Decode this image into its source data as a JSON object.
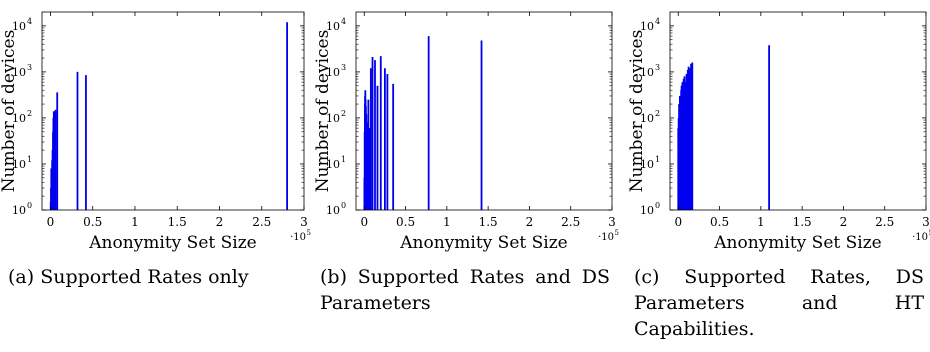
{
  "chart_data": [
    {
      "type": "bar",
      "xlabel": "Anonymity Set Size",
      "ylabel": "Number of devices",
      "x_exponent": "·10",
      "x_exponent_power": "5",
      "xlim": [
        -0.1,
        3.0
      ],
      "xticks": [
        "0",
        "0.5",
        "1",
        "1.5",
        "2",
        "2.5",
        "3"
      ],
      "xtick_values": [
        0,
        0.5,
        1,
        1.5,
        2,
        2.5,
        3
      ],
      "ylim": [
        1,
        20000
      ],
      "ylog": true,
      "yticks": [
        "10",
        "10",
        "10",
        "10",
        "10"
      ],
      "ytick_powers": [
        "0",
        "1",
        "2",
        "3",
        "4"
      ],
      "ytick_values": [
        1,
        10,
        100,
        1000,
        10000
      ],
      "color": "#0000ee",
      "x": [
        0.003,
        0.006,
        0.01,
        0.015,
        0.02,
        0.025,
        0.03,
        0.035,
        0.04,
        0.045,
        0.05,
        0.055,
        0.06,
        0.08,
        0.32,
        0.42,
        2.8
      ],
      "values": [
        1.5,
        3,
        8,
        5,
        12,
        20,
        50,
        100,
        140,
        40,
        130,
        100,
        150,
        360,
        1000,
        850,
        12000
      ],
      "caption": "(a) Supported Rates only"
    },
    {
      "type": "bar",
      "xlabel": "Anonymity Set Size",
      "ylabel": "Number of devices",
      "x_exponent": "·10",
      "x_exponent_power": "5",
      "xlim": [
        -0.1,
        3.0
      ],
      "xticks": [
        "0",
        "0.5",
        "1",
        "1.5",
        "2",
        "2.5",
        "3"
      ],
      "xtick_values": [
        0,
        0.5,
        1,
        1.5,
        2,
        2.5,
        3
      ],
      "ylim": [
        1,
        20000
      ],
      "ylog": true,
      "yticks": [
        "10",
        "10",
        "10",
        "10",
        "10"
      ],
      "ytick_powers": [
        "0",
        "1",
        "2",
        "3",
        "4"
      ],
      "ytick_values": [
        1,
        10,
        100,
        1000,
        10000
      ],
      "color": "#0000ee",
      "x": [
        0.002,
        0.005,
        0.008,
        0.01,
        0.013,
        0.016,
        0.02,
        0.025,
        0.03,
        0.035,
        0.04,
        0.05,
        0.06,
        0.08,
        0.1,
        0.13,
        0.16,
        0.2,
        0.25,
        0.28,
        0.35,
        0.78,
        1.42
      ],
      "values": [
        5,
        50,
        200,
        300,
        400,
        250,
        180,
        120,
        80,
        40,
        20,
        250,
        60,
        1200,
        2100,
        1800,
        500,
        2200,
        1200,
        900,
        550,
        6000,
        4800
      ],
      "caption": "(b) Supported Rates and DS Parameters"
    },
    {
      "type": "bar",
      "xlabel": "Anonymity Set Size",
      "ylabel": "Number of devices",
      "x_exponent": "·10",
      "x_exponent_power": "5",
      "xlim": [
        -0.1,
        3.0
      ],
      "xticks": [
        "0",
        "0.5",
        "1",
        "1.5",
        "2",
        "2.5",
        "3"
      ],
      "xtick_values": [
        0,
        0.5,
        1,
        1.5,
        2,
        2.5,
        3
      ],
      "ylim": [
        1,
        20000
      ],
      "ylog": true,
      "yticks": [
        "10",
        "10",
        "10",
        "10",
        "10"
      ],
      "ytick_powers": [
        "0",
        "1",
        "2",
        "3",
        "4"
      ],
      "ytick_values": [
        1,
        10,
        100,
        1000,
        10000
      ],
      "color": "#0000ee",
      "x": [
        0.0,
        0.005,
        0.01,
        0.015,
        0.02,
        0.025,
        0.03,
        0.035,
        0.04,
        0.045,
        0.05,
        0.055,
        0.06,
        0.065,
        0.07,
        0.075,
        0.08,
        0.085,
        0.09,
        0.095,
        0.1,
        0.105,
        0.11,
        0.115,
        0.12,
        0.125,
        0.13,
        0.135,
        0.14,
        0.145,
        0.15,
        0.155,
        0.16,
        0.165,
        0.17,
        1.1
      ],
      "values": [
        60,
        100,
        200,
        120,
        300,
        250,
        180,
        400,
        500,
        300,
        600,
        450,
        520,
        700,
        300,
        800,
        500,
        600,
        400,
        350,
        900,
        500,
        750,
        1100,
        500,
        1300,
        900,
        700,
        1000,
        1200,
        600,
        1500,
        900,
        1400,
        1600,
        3800
      ],
      "caption": "(c) Supported Rates, DS Parameters and HT Capabilities."
    }
  ]
}
